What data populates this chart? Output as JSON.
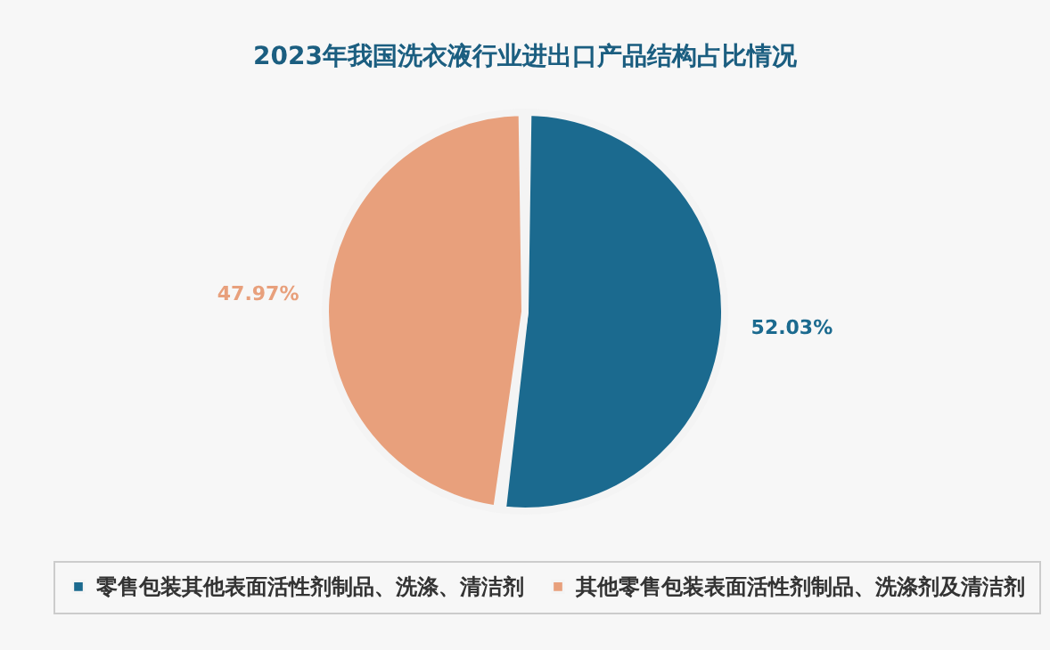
{
  "chart_data": {
    "type": "pie",
    "title": "2023年我国洗衣液行业进出口产品结构占比情况",
    "categories": [
      "零售包装其他表面活性剂制品、洗涤、清洁剂",
      "其他零售包装表面活性剂制品、洗涤剂及清洁剂"
    ],
    "values": [
      52.03,
      47.97
    ],
    "colors": [
      "#1b6a8f",
      "#e8a07c"
    ],
    "value_labels": [
      "52.03%",
      "47.97%"
    ],
    "legend": "bottom"
  }
}
